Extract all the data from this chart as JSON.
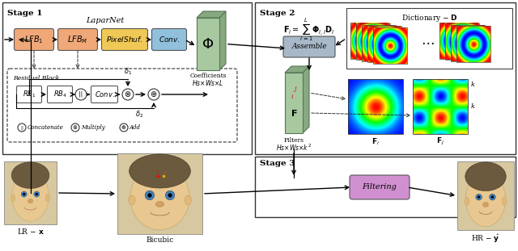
{
  "stage1_label": "Stage 1",
  "stage2_label": "Stage 2",
  "stage3_label": "Stage 3",
  "laparnet_label": "LaparNet",
  "box1_color": "#F0A878",
  "box2_color": "#F0A878",
  "box3_color": "#F0C855",
  "box4_color": "#90C0DC",
  "assemble_color": "#A8B8C8",
  "filtering_color": "#D090D0",
  "phi_color": "#A8C8A0",
  "phi_dark_color": "#88A880",
  "filters_color": "#A8C8A0",
  "filters_dark_color": "#88A880",
  "rb_color": "#FFFFFF",
  "dict_label": "Dictionary $-$ $\\mathbf{D}$",
  "coeff_label": "Coefficients",
  "coeff_sub": "$Hs\\times Ws\\times L$",
  "filters_label": "Filters",
  "filters_sub": "$Hs\\times Ws\\times k^2$"
}
